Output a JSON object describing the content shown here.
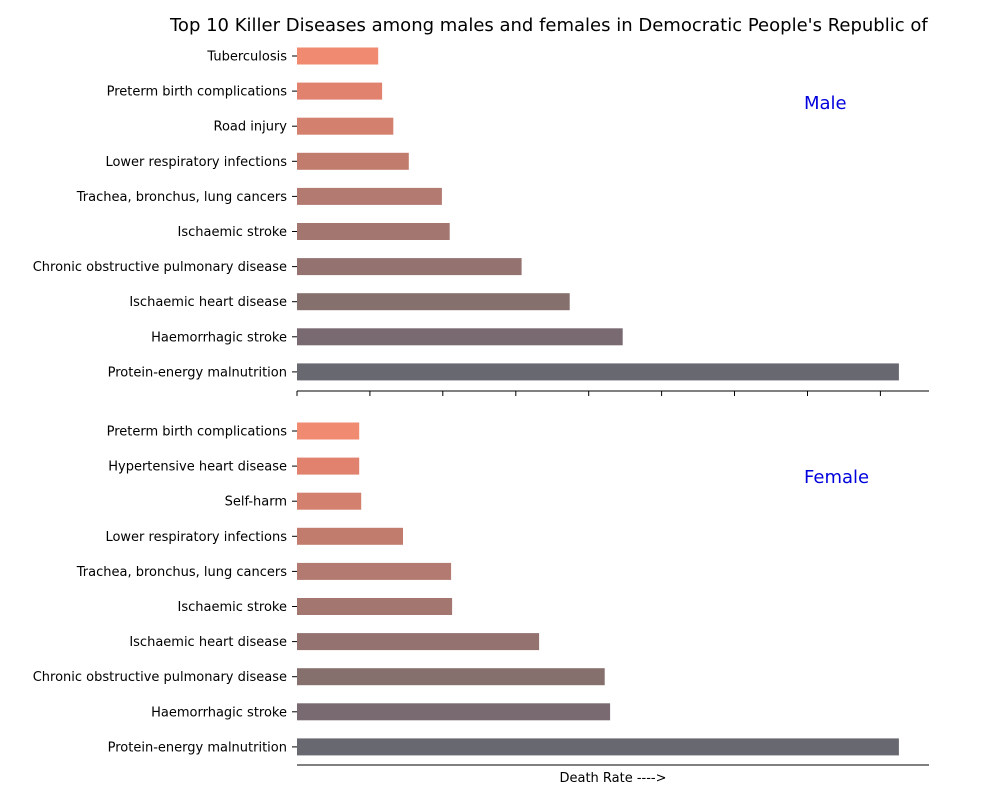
{
  "chart_data": {
    "type": "bar",
    "title": "Top 10 Killer Diseases among males and females in Democratic People's Republic of",
    "xlabel": "Death Rate ---->",
    "ylabel": "",
    "orientation": "horizontal",
    "xlim": [
      0,
      130
    ],
    "x_tick_labels_shown": false,
    "grid": false,
    "palette": [
      "#f08a70",
      "#e0826e",
      "#d4806e",
      "#c27c6e",
      "#b27a70",
      "#a47670",
      "#947270",
      "#86706e",
      "#786a70",
      "#686870"
    ],
    "panels": [
      {
        "label": "Male",
        "label_color": "#0000dd",
        "categories": [
          "Tuberculosis",
          "Preterm birth complications",
          "Road injury",
          "Lower respiratory infections",
          "Trachea, bronchus, lung cancers",
          "Ischaemic stroke",
          "Chronic obstructive pulmonary disease",
          "Ischaemic heart disease",
          "Haemorrhagic stroke",
          "Protein-energy malnutrition"
        ],
        "values": [
          16.7,
          17.5,
          19.8,
          23.0,
          29.8,
          31.4,
          46.2,
          56.1,
          67.0,
          123.8
        ]
      },
      {
        "label": "Female",
        "label_color": "#0000dd",
        "categories": [
          "Preterm birth complications",
          "Hypertensive heart disease",
          "Self-harm",
          "Lower respiratory infections",
          "Trachea, bronchus, lung cancers",
          "Ischaemic stroke",
          "Ischaemic heart disease",
          "Chronic obstructive pulmonary disease",
          "Haemorrhagic stroke",
          "Protein-energy malnutrition"
        ],
        "values": [
          12.8,
          12.8,
          13.2,
          21.8,
          31.7,
          31.9,
          49.8,
          63.3,
          64.4,
          123.8
        ]
      }
    ]
  }
}
